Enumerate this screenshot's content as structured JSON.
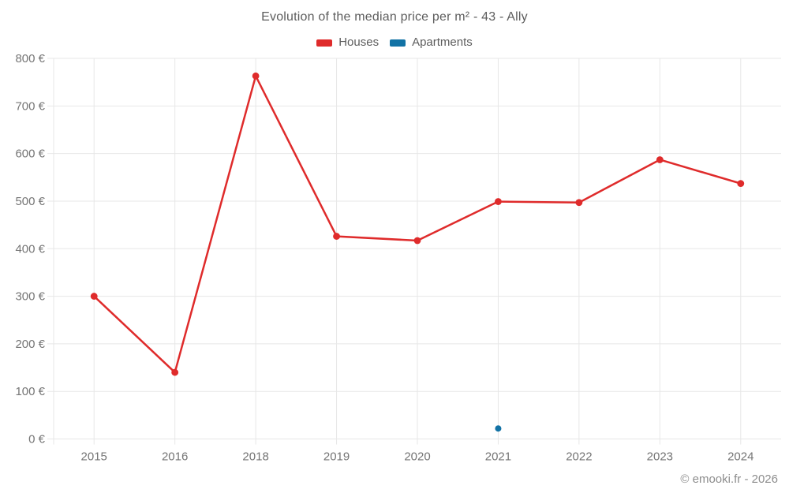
{
  "chart_data": {
    "type": "line",
    "title": "Evolution of the median price per m² - 43 - Ally",
    "categories": [
      "2015",
      "2016",
      "2018",
      "2019",
      "2020",
      "2021",
      "2022",
      "2023",
      "2024"
    ],
    "series": [
      {
        "name": "Houses",
        "color": "#df2b2b",
        "values": [
          300,
          140,
          763,
          426,
          417,
          499,
          497,
          587,
          537
        ]
      },
      {
        "name": "Apartments",
        "color": "#1272a5",
        "values": [
          null,
          null,
          null,
          null,
          null,
          22,
          null,
          null,
          null
        ]
      }
    ],
    "xlabel": "",
    "ylabel": "",
    "ylim": [
      0,
      800
    ],
    "ytick_step": 100,
    "ytick_suffix": " €",
    "grid": true,
    "legend_position": "top",
    "colors": {
      "grid_line": "#e7e7e7",
      "tick_text": "#757575"
    }
  },
  "footer": {
    "credit": "© emooki.fr - 2026"
  }
}
